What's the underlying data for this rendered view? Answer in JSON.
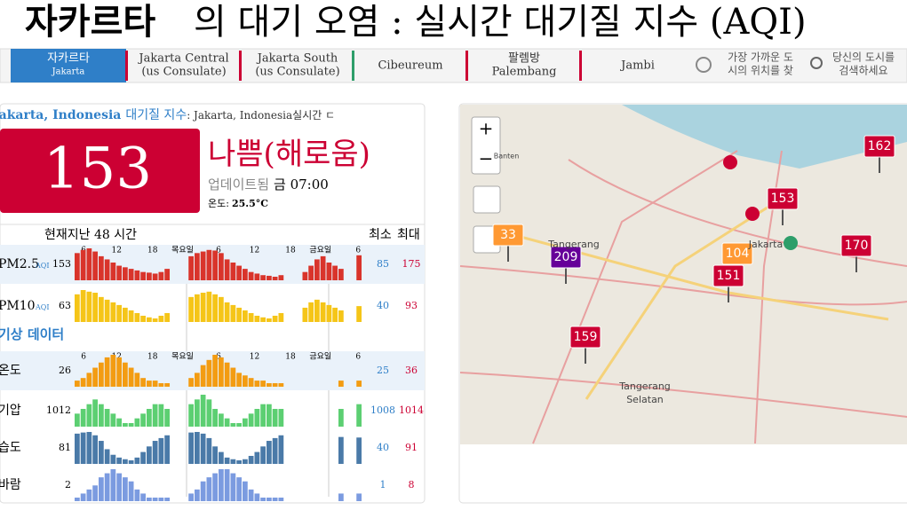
{
  "header": {
    "title_city": "자카르타",
    "title_rest": "의 대기 오염 : 실시간 대기질 지수 (AQI)"
  },
  "nav": {
    "tabs": [
      {
        "label": "자카르타",
        "sub": "Jakarta"
      },
      {
        "label": "Jakarta Central",
        "sub": "(us Consulate)"
      },
      {
        "label": "Jakarta South",
        "sub": "(us Consulate)"
      },
      {
        "label": "Cibeureum"
      },
      {
        "label": "팔렘방",
        "sub": "Palembang"
      },
      {
        "label": "Jambi"
      }
    ],
    "locate": [
      "가장 가까운 도",
      "시의 위치를 찾"
    ],
    "search": [
      "당신의 도시를",
      "검색하세요"
    ]
  },
  "panel": {
    "city": "Jakarta, Indonesia",
    "aqi_label": "대기질 지수",
    "station": ": Jakarta, Indonesia실시간 ㄷ",
    "aqi": 153,
    "status": "나쁨(해로움)",
    "updated": "업데이트됨",
    "update_time": "금 07:00",
    "temp_label": "온도:",
    "temp": "25.5°C",
    "history_label": "현재지난 48 시간",
    "min_label": "최소",
    "max_label": "최대",
    "weather_label": "기상 데이터",
    "time_labels": [
      "6",
      "12",
      "18",
      "목요일",
      "6",
      "12",
      "18",
      "금요일",
      "6"
    ],
    "rows": [
      {
        "name": "PM2.5",
        "unit": "AQI",
        "current": 153,
        "min": 85,
        "max": 175,
        "color": "#d9342b",
        "values": [
          160,
          170,
          175,
          165,
          150,
          140,
          130,
          120,
          115,
          110,
          105,
          100,
          98,
          95,
          100,
          110,
          null,
          null,
          null,
          150,
          160,
          165,
          170,
          168,
          160,
          140,
          130,
          120,
          110,
          100,
          95,
          90,
          88,
          85,
          90,
          null,
          null,
          null,
          100,
          120,
          140,
          150,
          130,
          120,
          110,
          null,
          null,
          153
        ]
      },
      {
        "name": "PM10",
        "unit": "AQI",
        "current": 63,
        "min": 40,
        "max": 93,
        "color": "#f5c518",
        "values": [
          85,
          93,
          90,
          88,
          80,
          75,
          70,
          65,
          60,
          55,
          50,
          45,
          42,
          40,
          45,
          50,
          null,
          null,
          null,
          80,
          85,
          88,
          90,
          85,
          80,
          70,
          65,
          60,
          55,
          50,
          45,
          42,
          40,
          45,
          50,
          null,
          null,
          null,
          60,
          70,
          75,
          70,
          65,
          60,
          55,
          null,
          null,
          63
        ]
      },
      {
        "name": "온도",
        "current": 26,
        "min": 25,
        "max": 36,
        "color": "#f39c12",
        "values": [
          26,
          27,
          29,
          31,
          33,
          35,
          36,
          35,
          33,
          31,
          29,
          27,
          26,
          26,
          25,
          25,
          null,
          null,
          null,
          27,
          29,
          32,
          34,
          36,
          35,
          33,
          31,
          29,
          28,
          27,
          26,
          26,
          25,
          25,
          25,
          null,
          null,
          null,
          null,
          null,
          null,
          null,
          null,
          null,
          26,
          null,
          null,
          26
        ]
      },
      {
        "name": "기압",
        "current": 1012,
        "min": 1008,
        "max": 1014,
        "color": "#5ccf72",
        "values": [
          1010,
          1011,
          1012,
          1013,
          1012,
          1011,
          1010,
          1009,
          1008,
          1008,
          1009,
          1010,
          1011,
          1012,
          1012,
          1011,
          null,
          null,
          null,
          1012,
          1013,
          1014,
          1013,
          1011,
          1010,
          1009,
          1008,
          1008,
          1009,
          1010,
          1011,
          1012,
          1012,
          1011,
          1011,
          null,
          null,
          null,
          null,
          null,
          null,
          null,
          null,
          null,
          1011,
          null,
          null,
          1012
        ]
      },
      {
        "name": "습도",
        "current": 81,
        "min": 40,
        "max": 91,
        "color": "#4a7aa8",
        "values": [
          88,
          90,
          91,
          85,
          75,
          60,
          50,
          45,
          42,
          40,
          45,
          55,
          65,
          75,
          80,
          85,
          null,
          null,
          null,
          90,
          91,
          88,
          80,
          65,
          55,
          45,
          42,
          40,
          42,
          48,
          55,
          65,
          75,
          80,
          85,
          null,
          null,
          null,
          null,
          null,
          null,
          null,
          null,
          null,
          82,
          null,
          null,
          81
        ]
      },
      {
        "name": "바람",
        "current": 2,
        "min": 1,
        "max": 8,
        "color": "#7b9be0",
        "values": [
          1,
          2,
          3,
          4,
          6,
          7,
          8,
          7,
          6,
          5,
          3,
          2,
          1,
          1,
          1,
          1,
          null,
          null,
          null,
          2,
          3,
          5,
          6,
          7,
          8,
          8,
          7,
          6,
          5,
          3,
          2,
          1,
          1,
          1,
          1,
          null,
          null,
          null,
          null,
          null,
          null,
          null,
          null,
          null,
          2,
          null,
          null,
          2
        ]
      }
    ]
  },
  "map": {
    "markers": [
      {
        "value": 162,
        "color": "#cc0033"
      },
      {
        "value": 153,
        "color": "#cc0033"
      },
      {
        "value": 209,
        "color": "#660099"
      },
      {
        "value": 104,
        "color": "#ff9933"
      },
      {
        "value": 151,
        "color": "#cc0033"
      },
      {
        "value": 159,
        "color": "#cc0033"
      },
      {
        "value": 170,
        "color": "#cc0033"
      },
      {
        "value": 33,
        "color": "#ff9933"
      }
    ],
    "places": [
      "Banten",
      "Tangerang",
      "Jakarta",
      "Tangerang",
      "Selatan"
    ]
  }
}
